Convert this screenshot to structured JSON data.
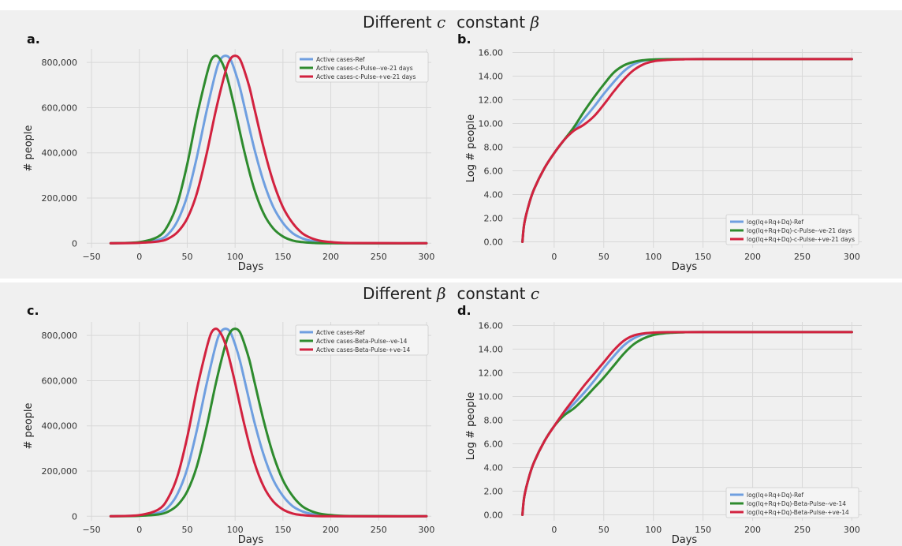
{
  "rows": [
    {
      "pre": "Different ",
      "italic1": "c",
      "mid": "constant ",
      "italic2": "β"
    },
    {
      "pre": "Different ",
      "italic1": "β",
      "mid": "constant ",
      "italic2": "c"
    }
  ],
  "colors": {
    "ref": "#6f9fe0",
    "green": "#2e8b2e",
    "red": "#d2223f",
    "grid": "#d8d8d8",
    "bg": "#f0f0f0"
  },
  "chart_data": [
    {
      "panel": "a.",
      "type": "line",
      "xlabel": "Days",
      "ylabel": "# people",
      "xlim": [
        -55,
        305
      ],
      "ylim": [
        -20000,
        860000
      ],
      "xticks": [
        -50,
        0,
        50,
        100,
        150,
        200,
        250,
        300
      ],
      "xtick_labels": [
        "−50",
        "0",
        "50",
        "100",
        "150",
        "200",
        "250",
        "300"
      ],
      "yticks": [
        0,
        200000,
        400000,
        600000,
        800000
      ],
      "ytick_labels": [
        "0",
        "200,000",
        "400,000",
        "600,000",
        "800,000"
      ],
      "legend_position": "top-right",
      "series": [
        {
          "name": "Active cases-Ref",
          "color_key": "ref",
          "x": [
            -30,
            0,
            20,
            30,
            40,
            50,
            60,
            70,
            80,
            85,
            90,
            95,
            100,
            105,
            110,
            120,
            130,
            140,
            150,
            160,
            170,
            180,
            200,
            220,
            300
          ],
          "y": [
            0,
            3000,
            15000,
            40000,
            100000,
            210000,
            380000,
            580000,
            760000,
            815000,
            830000,
            815000,
            760000,
            690000,
            600000,
            420000,
            270000,
            160000,
            90000,
            45000,
            22000,
            10000,
            2000,
            0,
            0
          ]
        },
        {
          "name": "Active cases-c-Pulse--ve-21 days",
          "color_key": "green",
          "x": [
            -30,
            0,
            20,
            30,
            40,
            50,
            60,
            70,
            75,
            80,
            85,
            90,
            95,
            100,
            110,
            120,
            130,
            140,
            150,
            160,
            170,
            180,
            200,
            300
          ],
          "y": [
            0,
            5000,
            30000,
            80000,
            180000,
            350000,
            560000,
            740000,
            810000,
            830000,
            810000,
            760000,
            680000,
            590000,
            400000,
            240000,
            130000,
            65000,
            30000,
            12000,
            5000,
            2000,
            0,
            0
          ]
        },
        {
          "name": "Active cases-c-Pulse-+ve-21 days",
          "color_key": "red",
          "x": [
            -30,
            0,
            20,
            30,
            40,
            50,
            60,
            70,
            80,
            90,
            95,
            100,
            105,
            110,
            115,
            120,
            130,
            140,
            150,
            160,
            170,
            180,
            190,
            200,
            220,
            300
          ],
          "y": [
            0,
            2000,
            8000,
            20000,
            50000,
            110000,
            220000,
            390000,
            590000,
            760000,
            815000,
            830000,
            815000,
            760000,
            690000,
            600000,
            420000,
            270000,
            160000,
            90000,
            45000,
            22000,
            10000,
            5000,
            1000,
            0
          ]
        }
      ]
    },
    {
      "panel": "b.",
      "type": "line",
      "xlabel": "Days",
      "ylabel": "Log # people",
      "xlim": [
        -42,
        310
      ],
      "ylim": [
        -0.5,
        16.3
      ],
      "xticks": [
        0,
        50,
        100,
        150,
        200,
        250,
        300
      ],
      "xtick_labels": [
        "0",
        "50",
        "100",
        "150",
        "200",
        "250",
        "300"
      ],
      "yticks": [
        0,
        2,
        4,
        6,
        8,
        10,
        12,
        14,
        16
      ],
      "ytick_labels": [
        "0.00",
        "2.00",
        "4.00",
        "6.00",
        "8.00",
        "10.00",
        "12.00",
        "14.00",
        "16.00"
      ],
      "legend_position": "bottom-right",
      "series": [
        {
          "name": "log(Iq+Rq+Dq)-Ref",
          "color_key": "ref",
          "x": [
            -32,
            -30,
            -25,
            -20,
            -10,
            0,
            10,
            20,
            30,
            40,
            50,
            60,
            70,
            80,
            90,
            100,
            110,
            120,
            150,
            300
          ],
          "y": [
            0,
            1.6,
            3.3,
            4.5,
            6.2,
            7.5,
            8.6,
            9.5,
            10.4,
            11.4,
            12.5,
            13.5,
            14.4,
            15.0,
            15.3,
            15.4,
            15.42,
            15.43,
            15.44,
            15.44
          ]
        },
        {
          "name": "log(Iq+Rq+Dq)-c-Pulse--ve-21 days",
          "color_key": "green",
          "x": [
            -32,
            -30,
            -25,
            -20,
            -10,
            0,
            10,
            20,
            30,
            40,
            50,
            60,
            70,
            80,
            90,
            100,
            110,
            150,
            300
          ],
          "y": [
            0,
            1.6,
            3.3,
            4.5,
            6.2,
            7.5,
            8.6,
            9.7,
            11.0,
            12.2,
            13.3,
            14.3,
            14.9,
            15.2,
            15.35,
            15.41,
            15.43,
            15.44,
            15.44
          ]
        },
        {
          "name": "log(Iq+Rq+Dq)-c-Pulse-+ve-21 days",
          "color_key": "red",
          "x": [
            -32,
            -30,
            -25,
            -20,
            -10,
            0,
            10,
            20,
            30,
            40,
            50,
            60,
            70,
            80,
            90,
            100,
            110,
            120,
            130,
            150,
            300
          ],
          "y": [
            0,
            1.6,
            3.3,
            4.5,
            6.2,
            7.5,
            8.6,
            9.4,
            9.9,
            10.6,
            11.6,
            12.7,
            13.7,
            14.5,
            15.0,
            15.25,
            15.35,
            15.4,
            15.42,
            15.44,
            15.44
          ]
        }
      ]
    },
    {
      "panel": "c.",
      "type": "line",
      "xlabel": "Days",
      "ylabel": "# people",
      "xlim": [
        -55,
        305
      ],
      "ylim": [
        -20000,
        860000
      ],
      "xticks": [
        -50,
        0,
        50,
        100,
        150,
        200,
        250,
        300
      ],
      "xtick_labels": [
        "−50",
        "0",
        "50",
        "100",
        "150",
        "200",
        "250",
        "300"
      ],
      "yticks": [
        0,
        200000,
        400000,
        600000,
        800000
      ],
      "ytick_labels": [
        "0",
        "200,000",
        "400,000",
        "600,000",
        "800,000"
      ],
      "legend_position": "top-right",
      "series": [
        {
          "name": "Active cases-Ref",
          "color_key": "ref",
          "x": [
            -30,
            0,
            20,
            30,
            40,
            50,
            60,
            70,
            80,
            85,
            90,
            95,
            100,
            105,
            110,
            120,
            130,
            140,
            150,
            160,
            170,
            180,
            200,
            220,
            300
          ],
          "y": [
            0,
            3000,
            15000,
            40000,
            100000,
            210000,
            380000,
            580000,
            760000,
            815000,
            830000,
            815000,
            760000,
            690000,
            600000,
            420000,
            270000,
            160000,
            90000,
            45000,
            22000,
            10000,
            2000,
            0,
            0
          ]
        },
        {
          "name": "Active cases-Beta-Pulse--ve-14",
          "color_key": "green",
          "x": [
            -30,
            0,
            20,
            30,
            40,
            50,
            60,
            70,
            80,
            90,
            95,
            100,
            105,
            110,
            115,
            120,
            130,
            140,
            150,
            160,
            170,
            180,
            190,
            200,
            220,
            300
          ],
          "y": [
            0,
            2000,
            8000,
            20000,
            50000,
            110000,
            220000,
            390000,
            590000,
            760000,
            815000,
            830000,
            815000,
            760000,
            690000,
            600000,
            420000,
            270000,
            160000,
            90000,
            45000,
            22000,
            10000,
            5000,
            1000,
            0
          ]
        },
        {
          "name": "Active cases-Beta-Pulse-+ve-14",
          "color_key": "red",
          "x": [
            -30,
            0,
            20,
            30,
            40,
            50,
            60,
            70,
            75,
            80,
            85,
            90,
            95,
            100,
            110,
            120,
            130,
            140,
            150,
            160,
            170,
            180,
            200,
            300
          ],
          "y": [
            0,
            5000,
            30000,
            80000,
            180000,
            350000,
            560000,
            740000,
            810000,
            830000,
            810000,
            760000,
            680000,
            590000,
            400000,
            240000,
            130000,
            65000,
            30000,
            12000,
            5000,
            2000,
            0,
            0
          ]
        }
      ]
    },
    {
      "panel": "d.",
      "type": "line",
      "xlabel": "Days",
      "ylabel": "Log # people",
      "xlim": [
        -42,
        310
      ],
      "ylim": [
        -0.5,
        16.3
      ],
      "xticks": [
        0,
        50,
        100,
        150,
        200,
        250,
        300
      ],
      "xtick_labels": [
        "0",
        "50",
        "100",
        "150",
        "200",
        "250",
        "300"
      ],
      "yticks": [
        0,
        2,
        4,
        6,
        8,
        10,
        12,
        14,
        16
      ],
      "ytick_labels": [
        "0.00",
        "2.00",
        "4.00",
        "6.00",
        "8.00",
        "10.00",
        "12.00",
        "14.00",
        "16.00"
      ],
      "legend_position": "bottom-right",
      "series": [
        {
          "name": "log(Iq+Rq+Dq)-Ref",
          "color_key": "ref",
          "x": [
            -32,
            -30,
            -25,
            -20,
            -10,
            0,
            10,
            20,
            30,
            40,
            50,
            60,
            70,
            80,
            90,
            100,
            110,
            120,
            150,
            300
          ],
          "y": [
            0,
            1.6,
            3.3,
            4.5,
            6.2,
            7.5,
            8.5,
            9.4,
            10.3,
            11.3,
            12.4,
            13.4,
            14.3,
            14.9,
            15.25,
            15.38,
            15.42,
            15.43,
            15.44,
            15.44
          ]
        },
        {
          "name": "log(Iq+Rq+Dq)-Beta-Pulse--ve-14",
          "color_key": "green",
          "x": [
            -32,
            -30,
            -25,
            -20,
            -10,
            0,
            10,
            20,
            30,
            40,
            50,
            60,
            70,
            80,
            90,
            100,
            110,
            120,
            130,
            150,
            300
          ],
          "y": [
            0,
            1.6,
            3.3,
            4.5,
            6.2,
            7.5,
            8.4,
            9.0,
            9.8,
            10.7,
            11.6,
            12.6,
            13.6,
            14.4,
            14.9,
            15.2,
            15.33,
            15.39,
            15.42,
            15.44,
            15.44
          ]
        },
        {
          "name": "log(Iq+Rq+Dq)-Beta-Pulse-+ve-14",
          "color_key": "red",
          "x": [
            -32,
            -30,
            -25,
            -20,
            -10,
            0,
            10,
            20,
            30,
            40,
            50,
            60,
            70,
            80,
            90,
            100,
            110,
            150,
            300
          ],
          "y": [
            0,
            1.6,
            3.3,
            4.5,
            6.2,
            7.5,
            8.7,
            9.8,
            10.9,
            11.9,
            12.9,
            13.9,
            14.7,
            15.15,
            15.33,
            15.4,
            15.43,
            15.44,
            15.44
          ]
        }
      ]
    }
  ]
}
